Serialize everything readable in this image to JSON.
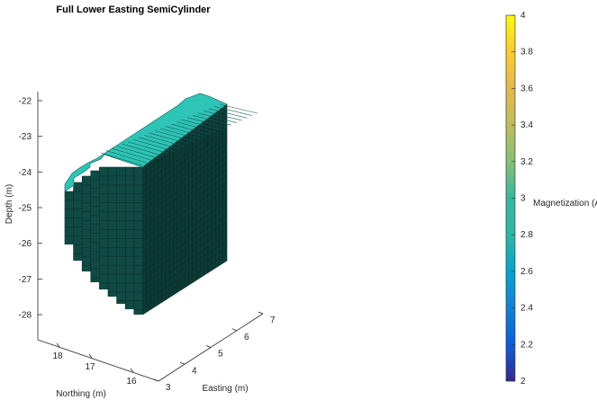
{
  "chart_data": {
    "type": "3d-voxel",
    "title": "Full Lower Easting SemiCylinder",
    "xlabel": "Easting (m)",
    "ylabel": "Northing (m)",
    "zlabel": "Depth (m)",
    "x_ticks": [
      "3",
      "4",
      "5",
      "6",
      "7"
    ],
    "y_ticks": [
      "16",
      "17",
      "18"
    ],
    "z_ticks": [
      "-22",
      "-23",
      "-24",
      "-25",
      "-26",
      "-27",
      "-28"
    ],
    "z_range": [
      -28,
      -22
    ],
    "block_value": 3,
    "colorbar": {
      "label": "Magnetization (A/m)",
      "range": [
        2,
        4
      ],
      "ticks": [
        "2",
        "2.2",
        "2.4",
        "2.6",
        "2.8",
        "3",
        "3.2",
        "3.4",
        "3.6",
        "3.8",
        "4"
      ],
      "colormap": "parula"
    },
    "colors": {
      "block_front": "#0f4a44",
      "block_top": "#2ec4b6",
      "block_side": "#0b3b36"
    }
  }
}
